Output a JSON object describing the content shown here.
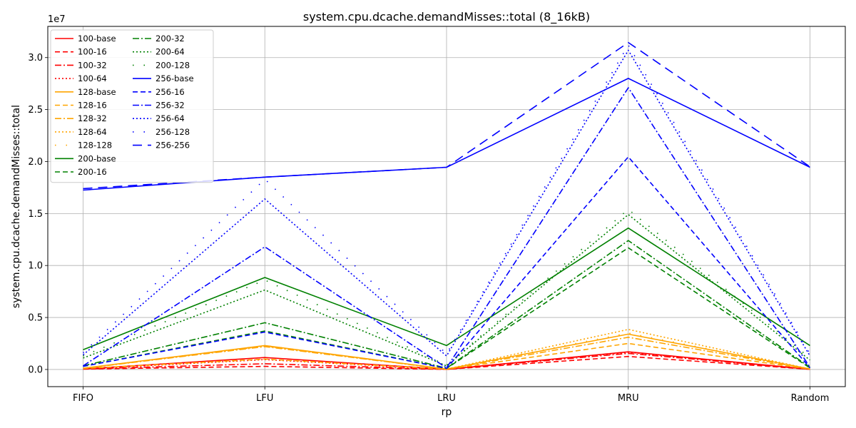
{
  "chart_data": {
    "type": "line",
    "title": "system.cpu.dcache.demandMisses::total (8_16kB)",
    "xlabel": "rp",
    "ylabel": "system.cpu.dcache.demandMisses::total",
    "y_offset_label": "1e7",
    "categories": [
      "FIFO",
      "LFU",
      "LRU",
      "MRU",
      "Random"
    ],
    "ylim": [
      -1650000,
      33000000
    ],
    "y_ticks": [
      0,
      5000000,
      10000000,
      15000000,
      20000000,
      25000000,
      30000000
    ],
    "y_tick_labels": [
      "0.0",
      "0.5",
      "1.0",
      "1.5",
      "2.0",
      "2.5",
      "3.0"
    ],
    "grid": true,
    "legend_position": "top-left",
    "series": [
      {
        "name": "100-base",
        "color": "#ff0000",
        "style": "solid",
        "values": [
          50000,
          1150000,
          20000,
          1700000,
          20000
        ]
      },
      {
        "name": "100-16",
        "color": "#ff0000",
        "style": "dashed",
        "values": [
          40000,
          300000,
          10000,
          1250000,
          15000
        ]
      },
      {
        "name": "100-32",
        "color": "#ff0000",
        "style": "dashdot",
        "values": [
          45000,
          550000,
          15000,
          1550000,
          18000
        ]
      },
      {
        "name": "100-64",
        "color": "#ff0000",
        "style": "dotted",
        "values": [
          50000,
          950000,
          18000,
          1650000,
          20000
        ]
      },
      {
        "name": "128-base",
        "color": "#ffa500",
        "style": "solid",
        "values": [
          120000,
          2300000,
          40000,
          3400000,
          50000
        ]
      },
      {
        "name": "128-16",
        "color": "#ffa500",
        "style": "dashed",
        "values": [
          90000,
          1000000,
          25000,
          2500000,
          30000
        ]
      },
      {
        "name": "128-32",
        "color": "#ffa500",
        "style": "dashdot",
        "values": [
          100000,
          2200000,
          30000,
          3100000,
          40000
        ]
      },
      {
        "name": "128-64",
        "color": "#ffa500",
        "style": "dotted",
        "values": [
          110000,
          2250000,
          35000,
          3850000,
          45000
        ]
      },
      {
        "name": "128-128",
        "color": "#ffa500",
        "style": "loose",
        "values": [
          115000,
          2300000,
          38000,
          3500000,
          48000
        ]
      },
      {
        "name": "200-base",
        "color": "#008000",
        "style": "solid",
        "values": [
          1900000,
          8850000,
          2300000,
          13600000,
          2300000
        ]
      },
      {
        "name": "200-16",
        "color": "#008000",
        "style": "dashed",
        "values": [
          300000,
          3700000,
          100000,
          11700000,
          150000
        ]
      },
      {
        "name": "200-32",
        "color": "#008000",
        "style": "dashdot",
        "values": [
          350000,
          4500000,
          120000,
          12400000,
          200000
        ]
      },
      {
        "name": "200-64",
        "color": "#008000",
        "style": "dotted",
        "values": [
          1100000,
          7650000,
          350000,
          14900000,
          900000
        ]
      },
      {
        "name": "200-128",
        "color": "#008000",
        "style": "loose",
        "values": [
          1300000,
          8600000,
          400000,
          15400000,
          1100000
        ]
      },
      {
        "name": "256-base",
        "color": "#0000ff",
        "style": "solid",
        "values": [
          17250000,
          18500000,
          19450000,
          28000000,
          19450000
        ]
      },
      {
        "name": "256-16",
        "color": "#0000ff",
        "style": "dashed",
        "values": [
          300000,
          3600000,
          100000,
          20450000,
          150000
        ]
      },
      {
        "name": "256-32",
        "color": "#0000ff",
        "style": "dashdot",
        "values": [
          350000,
          11800000,
          150000,
          27100000,
          200000
        ]
      },
      {
        "name": "256-64",
        "color": "#0000ff",
        "style": "dotted",
        "values": [
          1400000,
          16400000,
          1300000,
          30700000,
          1300000
        ]
      },
      {
        "name": "256-128",
        "color": "#0000ff",
        "style": "loose",
        "values": [
          1600000,
          18300000,
          1500000,
          31200000,
          1500000
        ]
      },
      {
        "name": "256-256",
        "color": "#0000ff",
        "style": "longdash",
        "values": [
          17400000,
          18500000,
          19450000,
          31450000,
          19500000
        ]
      }
    ]
  }
}
